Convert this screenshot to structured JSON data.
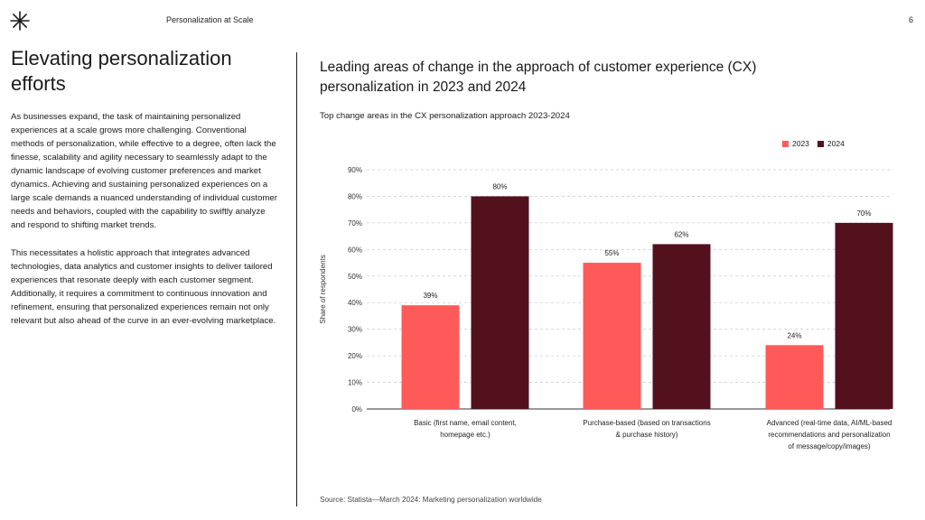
{
  "header": {
    "title": "Personalization at Scale",
    "page_number": "6"
  },
  "left": {
    "headline": "Elevating personalization efforts",
    "paragraphs": [
      "As businesses expand, the task of maintaining personalized experiences at a scale grows more challenging. Conventional methods of personalization, while effective to a degree, often lack the finesse, scalability and agility necessary to seamlessly adapt to the dynamic landscape of evolving customer preferences and market dynamics. Achieving and sustaining personalized experiences on a large scale demands a nuanced understanding of individual customer needs and behaviors, coupled with the capability to swiftly analyze and respond to shifting market trends.",
      "This necessitates a holistic approach that integrates advanced technologies, data analytics and customer insights to deliver tailored experiences that resonate deeply with each customer segment. Additionally, it requires a commitment to continuous innovation and refinement, ensuring that personalized experiences remain not only relevant but also ahead of the curve in an ever-evolving marketplace."
    ]
  },
  "chart_data": {
    "type": "bar",
    "title": "Leading areas of change in the approach of customer experience (CX) personalization in 2023 and 2024",
    "subtitle": "Top change areas in the CX personalization approach 2023-2024",
    "xlabel": "",
    "ylabel": "Share of respondents",
    "ylim": [
      0,
      90
    ],
    "yticks": [
      0,
      10,
      20,
      30,
      40,
      50,
      60,
      70,
      80,
      90
    ],
    "ytick_labels": [
      "0%",
      "10%",
      "20%",
      "30%",
      "40%",
      "50%",
      "60%",
      "70%",
      "80%",
      "90%"
    ],
    "grid": true,
    "legend_position": "top-right",
    "categories": [
      [
        "Basic (first name, email content,",
        "homepage etc.)"
      ],
      [
        "Purchase-based (based on transactions",
        "& purchase history)"
      ],
      [
        "Advanced (real-time data, AI/ML-based",
        "recommendations and personalization",
        "of message/copy/images)"
      ]
    ],
    "series": [
      {
        "name": "2023",
        "color": "#ff5a5a",
        "values": [
          39,
          55,
          24
        ],
        "labels": [
          "39%",
          "55%",
          "24%"
        ]
      },
      {
        "name": "2024",
        "color": "#52111d",
        "values": [
          80,
          62,
          70
        ],
        "labels": [
          "80%",
          "62%",
          "70%"
        ]
      }
    ]
  },
  "source": "Source: Statista—March 2024: Marketing personalization worldwide"
}
